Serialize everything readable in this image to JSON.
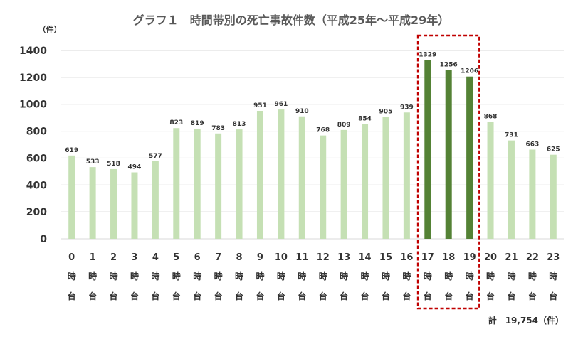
{
  "chart_data": {
    "type": "bar",
    "title": "グラフ１　時間帯別の死亡事故件数（平成25年～平成29年）",
    "unit_label": "（件）",
    "categories": [
      "0",
      "1",
      "2",
      "3",
      "4",
      "5",
      "6",
      "7",
      "8",
      "9",
      "10",
      "11",
      "12",
      "13",
      "14",
      "15",
      "16",
      "17",
      "18",
      "19",
      "20",
      "21",
      "22",
      "23"
    ],
    "category_suffix": [
      "時",
      "台"
    ],
    "values": [
      619,
      533,
      518,
      494,
      577,
      823,
      819,
      783,
      813,
      951,
      961,
      910,
      768,
      809,
      854,
      905,
      939,
      1329,
      1256,
      1206,
      868,
      731,
      663,
      625
    ],
    "ylim": [
      0,
      1400
    ],
    "yticks": [
      0,
      200,
      400,
      600,
      800,
      1000,
      1200,
      1400
    ],
    "grid": true,
    "highlight_categories": [
      "17",
      "18",
      "19"
    ],
    "colors": {
      "normal": "#c5e0b4",
      "highlight": "#548235",
      "highlight_box": "#c00000"
    },
    "total_label": "計　19,754（件）"
  }
}
